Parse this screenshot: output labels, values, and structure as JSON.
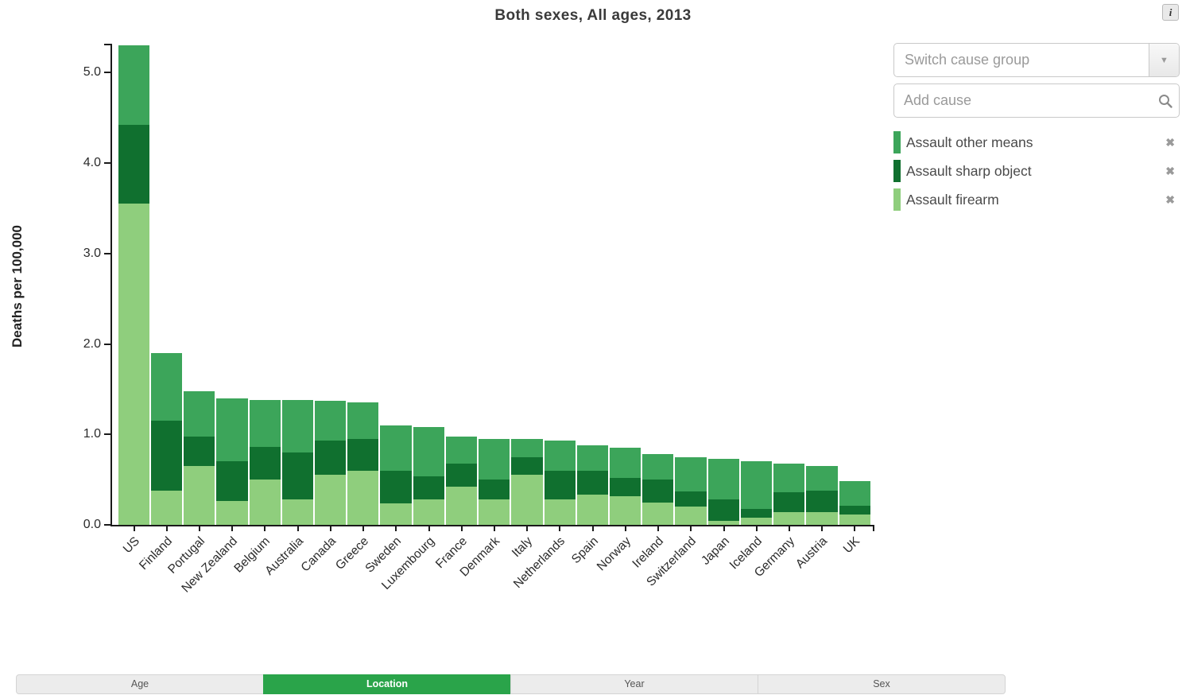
{
  "title": "Both sexes, All ages, 2013",
  "accent": "#2aa44a",
  "icons": {
    "info": "i",
    "dropdown": "▼",
    "remove": "✖",
    "search": "search-magnifier"
  },
  "controls": {
    "switch_placeholder": "Switch cause group",
    "add_placeholder": "Add cause"
  },
  "legend": {
    "items": [
      {
        "label": "Assault other means",
        "color": "#3ca55a"
      },
      {
        "label": "Assault sharp object",
        "color": "#10702f"
      },
      {
        "label": "Assault firearm",
        "color": "#8fce7d"
      }
    ]
  },
  "tabs": [
    {
      "label": "Age",
      "active": false
    },
    {
      "label": "Location",
      "active": true
    },
    {
      "label": "Year",
      "active": false
    },
    {
      "label": "Sex",
      "active": false
    }
  ],
  "chart_data": {
    "type": "bar",
    "stacked": true,
    "title": "Both sexes, All ages, 2013",
    "xlabel": "",
    "ylabel": "Deaths per 100,000",
    "ylim": [
      0,
      5.32
    ],
    "yticks": [
      0.0,
      1.0,
      2.0,
      3.0,
      4.0,
      5.0
    ],
    "grid": false,
    "legend_position": "right",
    "categories": [
      "US",
      "Finland",
      "Portugal",
      "New Zealand",
      "Belgium",
      "Australia",
      "Canada",
      "Greece",
      "Sweden",
      "Luxembourg",
      "France",
      "Denmark",
      "Italy",
      "Netherlands",
      "Spain",
      "Norway",
      "Ireland",
      "Switzerland",
      "Japan",
      "Iceland",
      "Germany",
      "Austria",
      "UK"
    ],
    "series": [
      {
        "name": "Assault firearm",
        "color": "#8fce7d",
        "values": [
          3.55,
          0.38,
          0.65,
          0.26,
          0.5,
          0.28,
          0.55,
          0.6,
          0.24,
          0.28,
          0.42,
          0.28,
          0.55,
          0.28,
          0.33,
          0.32,
          0.25,
          0.2,
          0.04,
          0.08,
          0.14,
          0.14,
          0.11
        ]
      },
      {
        "name": "Assault sharp object",
        "color": "#10702f",
        "values": [
          0.87,
          0.77,
          0.33,
          0.44,
          0.36,
          0.52,
          0.38,
          0.35,
          0.36,
          0.26,
          0.26,
          0.22,
          0.2,
          0.32,
          0.27,
          0.2,
          0.25,
          0.17,
          0.24,
          0.1,
          0.22,
          0.24,
          0.1
        ]
      },
      {
        "name": "Assault other means",
        "color": "#3ca55a",
        "values": [
          0.88,
          0.75,
          0.5,
          0.7,
          0.52,
          0.58,
          0.44,
          0.4,
          0.5,
          0.54,
          0.3,
          0.45,
          0.2,
          0.33,
          0.28,
          0.33,
          0.28,
          0.38,
          0.45,
          0.52,
          0.32,
          0.27,
          0.27
        ]
      }
    ]
  }
}
